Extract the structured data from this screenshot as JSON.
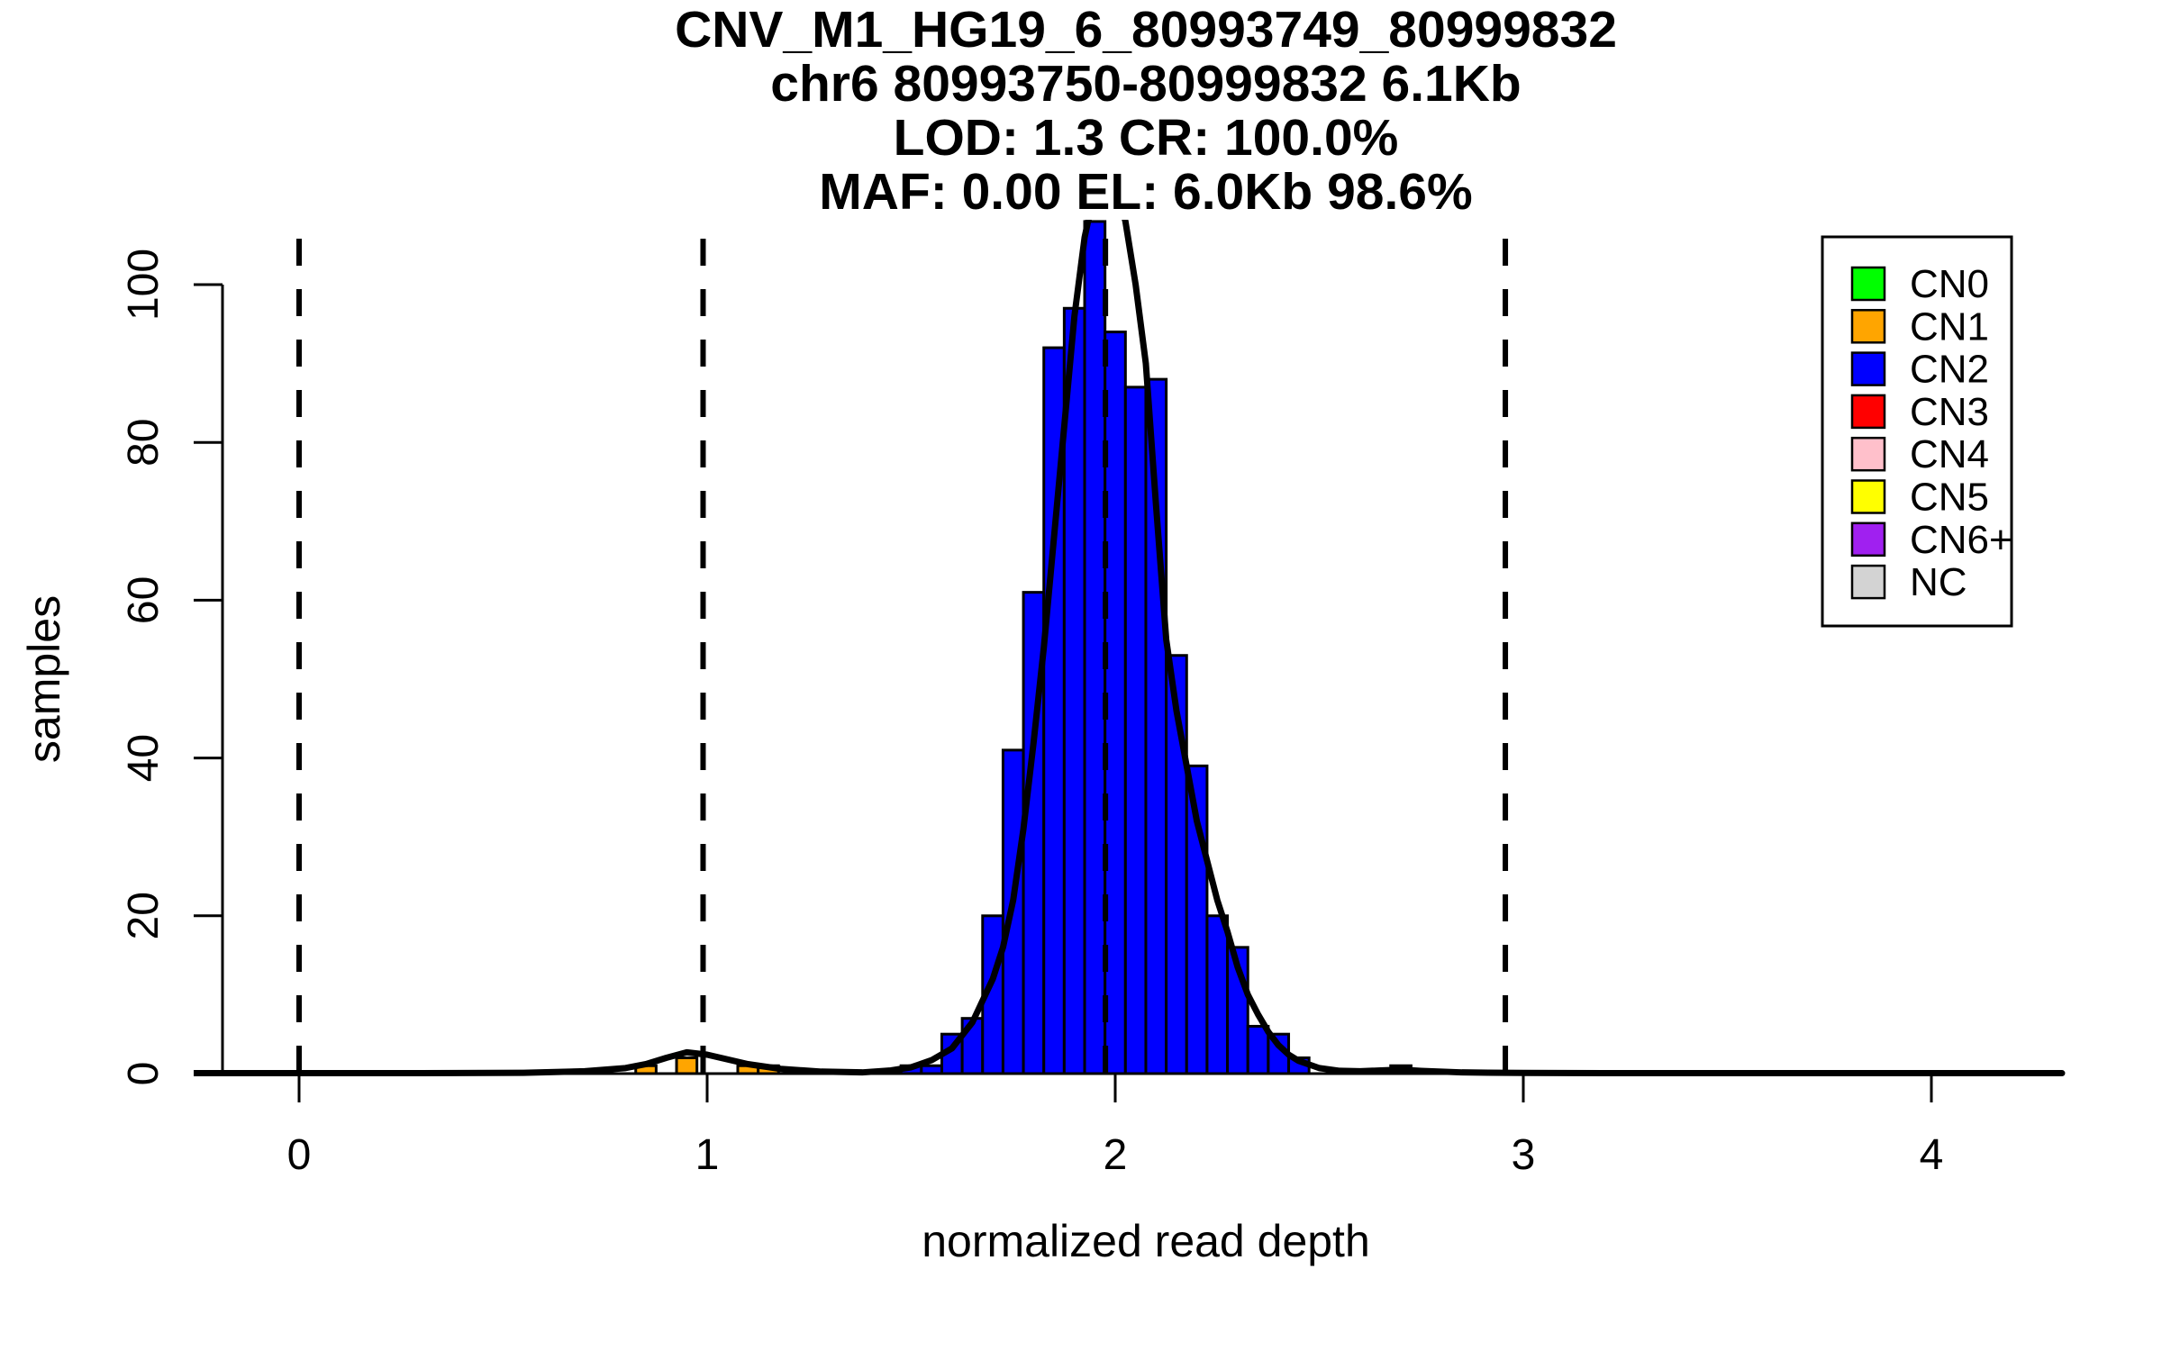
{
  "chart_data": {
    "type": "bar",
    "subtype": "histogram",
    "title_lines": [
      "CNV_M1_HG19_6_80993749_80999832",
      "chr6 80993750-80999832 6.1Kb",
      "LOD: 1.3 CR: 100.0%",
      "MAF: 0.00 EL: 6.0Kb 98.6%"
    ],
    "xlabel": "normalized read depth",
    "ylabel": "samples",
    "x_ticks": [
      0,
      1,
      2,
      3,
      4
    ],
    "y_ticks": [
      0,
      20,
      40,
      60,
      80,
      100
    ],
    "xlim": [
      -0.26,
      4.32
    ],
    "ylim": [
      0,
      108.2
    ],
    "grid": "off",
    "legend_position": "top-right",
    "bin_width": 0.05,
    "bars": [
      {
        "x": 0.825,
        "h": 1,
        "cn": "CN1"
      },
      {
        "x": 0.925,
        "h": 2,
        "cn": "CN1"
      },
      {
        "x": 1.075,
        "h": 1,
        "cn": "CN1"
      },
      {
        "x": 1.125,
        "h": 1,
        "cn": "CN1"
      },
      {
        "x": 1.475,
        "h": 1,
        "cn": "CN2"
      },
      {
        "x": 1.525,
        "h": 1,
        "cn": "CN2"
      },
      {
        "x": 1.575,
        "h": 5,
        "cn": "CN2"
      },
      {
        "x": 1.625,
        "h": 7,
        "cn": "CN2"
      },
      {
        "x": 1.675,
        "h": 20,
        "cn": "CN2"
      },
      {
        "x": 1.725,
        "h": 41,
        "cn": "CN2"
      },
      {
        "x": 1.775,
        "h": 61,
        "cn": "CN2"
      },
      {
        "x": 1.825,
        "h": 92,
        "cn": "CN2"
      },
      {
        "x": 1.875,
        "h": 97,
        "cn": "CN2"
      },
      {
        "x": 1.925,
        "h": 108,
        "cn": "CN2"
      },
      {
        "x": 1.975,
        "h": 94,
        "cn": "CN2"
      },
      {
        "x": 2.025,
        "h": 87,
        "cn": "CN2"
      },
      {
        "x": 2.075,
        "h": 88,
        "cn": "CN2"
      },
      {
        "x": 2.125,
        "h": 53,
        "cn": "CN2"
      },
      {
        "x": 2.175,
        "h": 39,
        "cn": "CN2"
      },
      {
        "x": 2.225,
        "h": 20,
        "cn": "CN2"
      },
      {
        "x": 2.275,
        "h": 16,
        "cn": "CN2"
      },
      {
        "x": 2.325,
        "h": 6,
        "cn": "CN2"
      },
      {
        "x": 2.375,
        "h": 5,
        "cn": "CN2"
      },
      {
        "x": 2.425,
        "h": 2,
        "cn": "CN2"
      },
      {
        "x": 2.675,
        "h": 1,
        "cn": "CN2"
      }
    ],
    "dashed_lines_x": [
      0.0,
      0.99,
      1.976,
      2.956
    ],
    "curve_points": [
      [
        -0.26,
        0.05
      ],
      [
        0.3,
        0.05
      ],
      [
        0.55,
        0.1
      ],
      [
        0.7,
        0.3
      ],
      [
        0.8,
        0.7
      ],
      [
        0.85,
        1.2
      ],
      [
        0.9,
        2.0
      ],
      [
        0.95,
        2.7
      ],
      [
        1.0,
        2.4
      ],
      [
        1.05,
        1.8
      ],
      [
        1.1,
        1.2
      ],
      [
        1.18,
        0.6
      ],
      [
        1.28,
        0.25
      ],
      [
        1.38,
        0.15
      ],
      [
        1.45,
        0.4
      ],
      [
        1.5,
        0.8
      ],
      [
        1.55,
        1.7
      ],
      [
        1.6,
        3.2
      ],
      [
        1.65,
        6.5
      ],
      [
        1.7,
        12.0
      ],
      [
        1.725,
        16.0
      ],
      [
        1.75,
        22.0
      ],
      [
        1.775,
        31.0
      ],
      [
        1.8,
        42.0
      ],
      [
        1.825,
        54.0
      ],
      [
        1.85,
        68.0
      ],
      [
        1.875,
        82.0
      ],
      [
        1.9,
        96.0
      ],
      [
        1.925,
        106.0
      ],
      [
        1.95,
        112.0
      ],
      [
        1.975,
        114.5
      ],
      [
        2.0,
        113.0
      ],
      [
        2.025,
        108.0
      ],
      [
        2.05,
        100.0
      ],
      [
        2.075,
        90.0
      ],
      [
        2.1,
        72.0
      ],
      [
        2.125,
        55.0
      ],
      [
        2.15,
        46.0
      ],
      [
        2.175,
        39.0
      ],
      [
        2.2,
        32.0
      ],
      [
        2.225,
        27.0
      ],
      [
        2.25,
        22.0
      ],
      [
        2.275,
        18.0
      ],
      [
        2.3,
        13.5
      ],
      [
        2.325,
        10.0
      ],
      [
        2.35,
        7.5
      ],
      [
        2.375,
        5.3
      ],
      [
        2.4,
        3.6
      ],
      [
        2.425,
        2.4
      ],
      [
        2.45,
        1.6
      ],
      [
        2.5,
        0.7
      ],
      [
        2.55,
        0.35
      ],
      [
        2.6,
        0.3
      ],
      [
        2.65,
        0.4
      ],
      [
        2.7,
        0.5
      ],
      [
        2.75,
        0.35
      ],
      [
        2.85,
        0.15
      ],
      [
        3.0,
        0.08
      ],
      [
        3.3,
        0.05
      ],
      [
        4.32,
        0.05
      ]
    ],
    "legend": {
      "items": [
        {
          "label": "CN0",
          "color": "#00FF00"
        },
        {
          "label": "CN1",
          "color": "#FFA500"
        },
        {
          "label": "CN2",
          "color": "#0000FF"
        },
        {
          "label": "CN3",
          "color": "#FF0000"
        },
        {
          "label": "CN4",
          "color": "#FFC0CB"
        },
        {
          "label": "CN5",
          "color": "#FFFF00"
        },
        {
          "label": "CN6+",
          "color": "#A020F0"
        },
        {
          "label": "NC",
          "color": "#D3D3D3"
        }
      ]
    },
    "colors": {
      "CN0": "#00FF00",
      "CN1": "#FFA500",
      "CN2": "#0000FF",
      "CN3": "#FF0000",
      "CN4": "#FFC0CB",
      "CN5": "#FFFF00",
      "CN6+": "#A020F0",
      "NC": "#D3D3D3",
      "curve": "#000000",
      "axis": "#000000"
    }
  }
}
